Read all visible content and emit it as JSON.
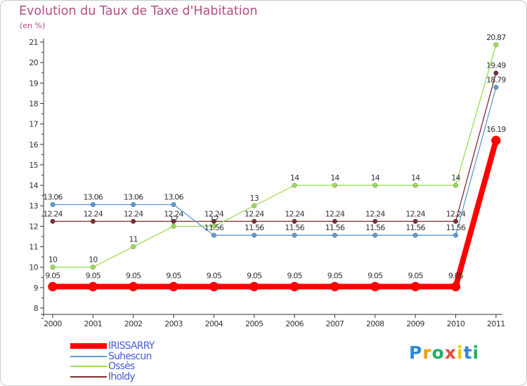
{
  "title": "Evolution du Taux de Taxe d'Habitation",
  "subtitle": "(en %)",
  "logo": {
    "letters": [
      "P",
      "r",
      "o",
      "x",
      "i",
      "t",
      "i"
    ],
    "colors": [
      "#2e86de",
      "#f39c12",
      "#27ae60",
      "#e74c3c",
      "#f1c40f",
      "#2e86de",
      "#27ae60"
    ]
  },
  "legend": [
    {
      "name": "IRISSARRY",
      "color": "#ff0000",
      "weight": "thick"
    },
    {
      "name": "Suhescun",
      "color": "#5b9bd5",
      "weight": "thin"
    },
    {
      "name": "Ossès",
      "color": "#99dd55",
      "weight": "thin"
    },
    {
      "name": "Iholdy",
      "color": "#7a2e2e",
      "weight": "thin"
    }
  ],
  "chart_data": {
    "type": "line",
    "title": "Evolution du Taux de Taxe d'Habitation",
    "ylabel": "(en %)",
    "x": [
      "2000",
      "2001",
      "2002",
      "2003",
      "2004",
      "2005",
      "2006",
      "2007",
      "2008",
      "2009",
      "2010",
      "2011"
    ],
    "ylim": [
      8,
      21
    ],
    "yticks": [
      "8",
      "9",
      "10",
      "11",
      "12",
      "13",
      "14",
      "15",
      "16",
      "17",
      "18",
      "19",
      "20",
      "21"
    ],
    "grid": false,
    "series": [
      {
        "name": "Iholdy",
        "color": "#7a2e2e",
        "values": [
          12.24,
          12.24,
          12.24,
          12.24,
          12.24,
          12.24,
          12.24,
          12.24,
          12.24,
          12.24,
          12.24,
          19.49
        ],
        "labels": [
          "12.24",
          "12.24",
          "12.24",
          "12.24",
          "12.24",
          "12.24",
          "12.24",
          "12.24",
          "12.24",
          "12.24",
          "12.24",
          "19.49"
        ]
      },
      {
        "name": "Ossès",
        "color": "#99dd55",
        "values": [
          10,
          10,
          11,
          12,
          12,
          13,
          14,
          14,
          14,
          14,
          14,
          20.87
        ],
        "labels": [
          "10",
          "10",
          "11",
          "12",
          "12",
          "13",
          "14",
          "14",
          "14",
          "14",
          "14",
          "20.87"
        ]
      },
      {
        "name": "Suhescun",
        "color": "#5b9bd5",
        "values": [
          13.06,
          13.06,
          13.06,
          13.06,
          11.56,
          11.56,
          11.56,
          11.56,
          11.56,
          11.56,
          11.56,
          18.79
        ],
        "labels": [
          "13.06",
          "13.06",
          "13.06",
          "13.06",
          "11.56",
          "11.56",
          "11.56",
          "11.56",
          "11.56",
          "11.56",
          "11.56",
          "18.79"
        ]
      },
      {
        "name": "IRISSARRY",
        "color": "#ff0000",
        "values": [
          9.05,
          9.05,
          9.05,
          9.05,
          9.05,
          9.05,
          9.05,
          9.05,
          9.05,
          9.05,
          9.05,
          16.19
        ],
        "labels": [
          "9.05",
          "9.05",
          "9.05",
          "9.05",
          "9.05",
          "9.05",
          "9.05",
          "9.05",
          "9.05",
          "9.05",
          "9.05",
          "16.19"
        ]
      }
    ]
  }
}
